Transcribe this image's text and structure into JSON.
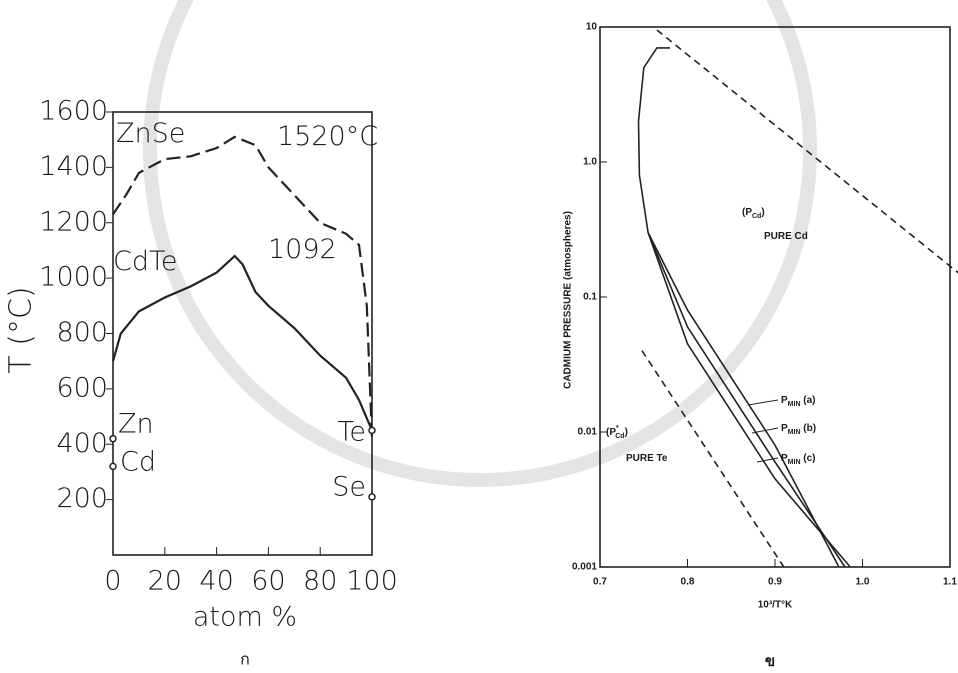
{
  "chart_data": [
    {
      "type": "line",
      "x_label": "atom %",
      "y_label": "T (°C)",
      "caption": "ก",
      "xlim": [
        0,
        100
      ],
      "ylim": [
        0,
        1600
      ],
      "xticks": [
        0,
        20,
        40,
        60,
        80,
        100
      ],
      "yticks": [
        200,
        400,
        600,
        800,
        1000,
        1200,
        1400,
        1600
      ],
      "series": [
        {
          "color": "#222222",
          "dash": true,
          "x": [
            0,
            5,
            10,
            20,
            30,
            40,
            47,
            55,
            60,
            70,
            80,
            90,
            95,
            98,
            100
          ],
          "values": [
            1230,
            1300,
            1380,
            1430,
            1440,
            1470,
            1510,
            1480,
            1400,
            1300,
            1200,
            1160,
            1120,
            900,
            420
          ]
        },
        {
          "color": "#222222",
          "dash": false,
          "x": [
            0,
            3,
            10,
            20,
            30,
            40,
            47,
            50,
            55,
            60,
            70,
            80,
            90,
            95,
            100
          ],
          "values": [
            700,
            800,
            880,
            930,
            970,
            1020,
            1080,
            1050,
            950,
            900,
            820,
            720,
            640,
            560,
            450
          ]
        }
      ],
      "points": [
        {
          "label": "Zn",
          "x": 0,
          "y": 420
        },
        {
          "label": "Cd",
          "x": 0,
          "y": 320
        },
        {
          "label": "Te",
          "x": 100,
          "y": 450
        },
        {
          "label": "Se",
          "x": 100,
          "y": 210
        }
      ],
      "annotations": [
        {
          "text": "ZnSe"
        },
        {
          "text": "1520°C"
        },
        {
          "text": "CdTe"
        },
        {
          "text": "1092"
        }
      ]
    },
    {
      "type": "line",
      "log_y": true,
      "x_label": "10³/T°K",
      "y_label": "CADMIUM PRESSURE (atmospheres)",
      "caption": "ข",
      "xlim": [
        0.7,
        1.1
      ],
      "ylim": [
        0.001,
        10
      ],
      "xticks": [
        0.7,
        0.8,
        0.9,
        {
          "value": 1,
          "label": "1.0"
        },
        1.1
      ],
      "yticks": [
        0.001,
        0.01,
        0.1,
        {
          "value": 1,
          "label": "1.0"
        },
        10
      ],
      "series": [
        {
          "color": "#222222",
          "dash": true,
          "x": [
            0.765,
            1.11
          ],
          "values": [
            9.5,
            0.15
          ]
        },
        {
          "color": "#222222",
          "dash": true,
          "x": [
            0.748,
            0.91
          ],
          "values": [
            0.04,
            0.001
          ]
        },
        {
          "color": "#222222",
          "dash": false,
          "x": [
            0.755,
            0.745,
            0.744,
            0.75,
            0.765,
            0.78
          ],
          "values": [
            0.3,
            0.8,
            2,
            5,
            7,
            7
          ]
        },
        {
          "color": "#222222",
          "dash": false,
          "x": [
            0.755,
            0.8,
            0.9,
            0.973
          ],
          "values": [
            0.3,
            0.08,
            0.008,
            0.001
          ]
        },
        {
          "color": "#222222",
          "dash": false,
          "x": [
            0.755,
            0.8,
            0.9,
            0.98
          ],
          "values": [
            0.3,
            0.06,
            0.006,
            0.001
          ]
        },
        {
          "color": "#222222",
          "dash": false,
          "x": [
            0.755,
            0.8,
            0.9,
            0.986
          ],
          "values": [
            0.3,
            0.045,
            0.0045,
            0.001
          ]
        }
      ],
      "annotations": [
        {
          "text": "(P",
          "sub": "Cd",
          "tail": ")"
        },
        {
          "text": "PURE Cd"
        },
        {
          "text": "(P",
          "sup": "*",
          "sub": "Cd",
          "tail": ")"
        },
        {
          "text": "PURE Te"
        },
        {
          "text": "P",
          "sub": "MIN",
          "tail": " (a)"
        },
        {
          "text": "P",
          "sub": "MIN",
          "tail": " (b)"
        },
        {
          "text": "P",
          "sub": "MIN",
          "tail": " (c)"
        }
      ]
    }
  ]
}
